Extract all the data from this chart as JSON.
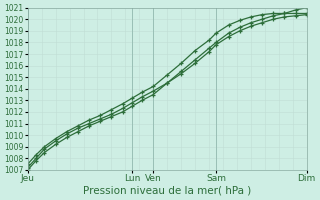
{
  "title": "Pression niveau de la mer( hPa )",
  "background_color": "#ceeee4",
  "grid_color_minor": "#c0ddd5",
  "grid_color_major": "#99bfb5",
  "line_color": "#2d6e3a",
  "ylim": [
    1007,
    1021
  ],
  "yticks": [
    1007,
    1008,
    1009,
    1010,
    1011,
    1012,
    1013,
    1014,
    1015,
    1016,
    1017,
    1018,
    1019,
    1020,
    1021
  ],
  "x_day_labels": [
    "Jeu",
    "Lun",
    "Ven",
    "Sam",
    "Dim"
  ],
  "x_day_positions": [
    0.0,
    3.75,
    4.5,
    6.75,
    10.0
  ],
  "series1_x": [
    0.0,
    0.3,
    0.6,
    1.0,
    1.4,
    1.8,
    2.2,
    2.6,
    3.0,
    3.4,
    3.75,
    4.1,
    4.5,
    5.0,
    5.5,
    6.0,
    6.5,
    6.75,
    7.2,
    7.6,
    8.0,
    8.4,
    8.8,
    9.2,
    9.6,
    10.0
  ],
  "series1_y": [
    1007.0,
    1007.8,
    1008.5,
    1009.2,
    1009.8,
    1010.3,
    1010.8,
    1011.2,
    1011.6,
    1012.0,
    1012.5,
    1013.0,
    1013.5,
    1014.5,
    1015.5,
    1016.5,
    1017.5,
    1018.0,
    1018.8,
    1019.3,
    1019.7,
    1020.0,
    1020.3,
    1020.5,
    1020.8,
    1021.0
  ],
  "series2_x": [
    0.0,
    0.3,
    0.6,
    1.0,
    1.4,
    1.8,
    2.2,
    2.6,
    3.0,
    3.4,
    3.75,
    4.1,
    4.5,
    5.0,
    5.5,
    6.0,
    6.5,
    6.75,
    7.2,
    7.6,
    8.0,
    8.4,
    8.8,
    9.2,
    9.6,
    10.0
  ],
  "series2_y": [
    1007.2,
    1008.0,
    1008.8,
    1009.5,
    1010.1,
    1010.6,
    1011.0,
    1011.4,
    1011.8,
    1012.3,
    1012.8,
    1013.3,
    1013.8,
    1014.5,
    1015.3,
    1016.2,
    1017.2,
    1017.8,
    1018.5,
    1019.0,
    1019.4,
    1019.7,
    1020.0,
    1020.2,
    1020.3,
    1020.4
  ],
  "series3_x": [
    0.0,
    0.3,
    0.6,
    1.0,
    1.4,
    1.8,
    2.2,
    2.6,
    3.0,
    3.4,
    3.75,
    4.1,
    4.5,
    5.0,
    5.5,
    6.0,
    6.5,
    6.75,
    7.2,
    7.6,
    8.0,
    8.4,
    8.8,
    9.2,
    9.6,
    10.0
  ],
  "series3_y": [
    1007.5,
    1008.3,
    1009.0,
    1009.7,
    1010.3,
    1010.8,
    1011.3,
    1011.7,
    1012.2,
    1012.7,
    1013.2,
    1013.7,
    1014.2,
    1015.2,
    1016.2,
    1017.3,
    1018.2,
    1018.8,
    1019.5,
    1019.9,
    1020.2,
    1020.4,
    1020.5,
    1020.5,
    1020.5,
    1020.5
  ],
  "xlabel_fontsize": 6.5,
  "ylabel_fontsize": 5.5,
  "title_fontsize": 7.5
}
